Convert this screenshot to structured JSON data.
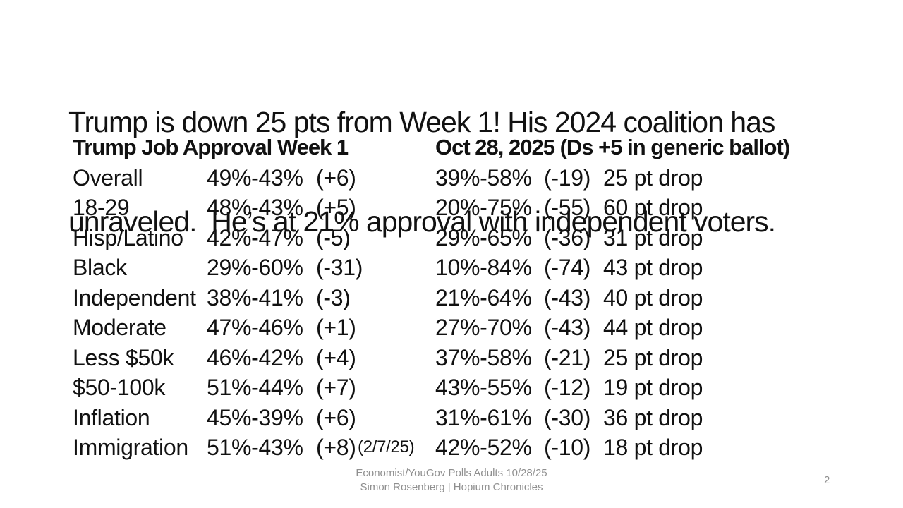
{
  "slide": {
    "title_line1": "Trump is down 25 pts from Week 1! His 2024 coalition has",
    "title_line2": "unraveled.  He’s at 21% approval with independent voters."
  },
  "table": {
    "week1_header": "Trump Job Approval Week 1",
    "oct28_header": "Oct 28, 2025 (Ds +5 in generic ballot)",
    "rows": [
      {
        "group": "Overall",
        "week1": "49%-43%",
        "week1_margin": "(+6)",
        "oct28": "39%-58%",
        "oct28_margin": "(-19)",
        "drop": "25 pt drop"
      },
      {
        "group": "18-29",
        "week1": "48%-43%",
        "week1_margin": "(+5)",
        "oct28": "20%-75%",
        "oct28_margin": "(-55)",
        "drop": "60 pt drop"
      },
      {
        "group": "Hisp/Latino",
        "week1": "42%-47%",
        "week1_margin": "(-5)",
        "oct28": "29%-65%",
        "oct28_margin": "(-36)",
        "drop": "31 pt drop"
      },
      {
        "group": "Black",
        "week1": "29%-60%",
        "week1_margin": "(-31)",
        "oct28": "10%-84%",
        "oct28_margin": "(-74)",
        "drop": "43 pt drop"
      },
      {
        "group": "Independent",
        "week1": "38%-41%",
        "week1_margin": "(-3)",
        "oct28": "21%-64%",
        "oct28_margin": "(-43)",
        "drop": "40 pt drop"
      },
      {
        "group": "Moderate",
        "week1": "47%-46%",
        "week1_margin": "(+1)",
        "oct28": "27%-70%",
        "oct28_margin": "(-43)",
        "drop": "44 pt drop"
      },
      {
        "group": "Less $50k",
        "week1": "46%-42%",
        "week1_margin": "(+4)",
        "oct28": "37%-58%",
        "oct28_margin": "(-21)",
        "drop": "25 pt drop"
      },
      {
        "group": "$50-100k",
        "week1": "51%-44%",
        "week1_margin": "(+7)",
        "oct28": "43%-55%",
        "oct28_margin": "(-12)",
        "drop": "19 pt drop"
      },
      {
        "group": "Inflation",
        "week1": "45%-39%",
        "week1_margin": "(+6)",
        "oct28": "31%-61%",
        "oct28_margin": "(-30)",
        "drop": "36 pt drop"
      },
      {
        "group": "Immigration",
        "week1": "51%-43%",
        "week1_margin": "(+8)",
        "note": "(2/7/25)",
        "oct28": "42%-52%",
        "oct28_margin": "(-10)",
        "drop": "18 pt drop"
      }
    ]
  },
  "footer": {
    "line1": "Economist/YouGov Polls Adults 10/28/25",
    "line2": "Simon Rosenberg | Hopium Chronicles",
    "page_number": "2"
  },
  "colors": {
    "background": "#ffffff",
    "text": "#111111",
    "footer_text": "#8f8f8f"
  }
}
